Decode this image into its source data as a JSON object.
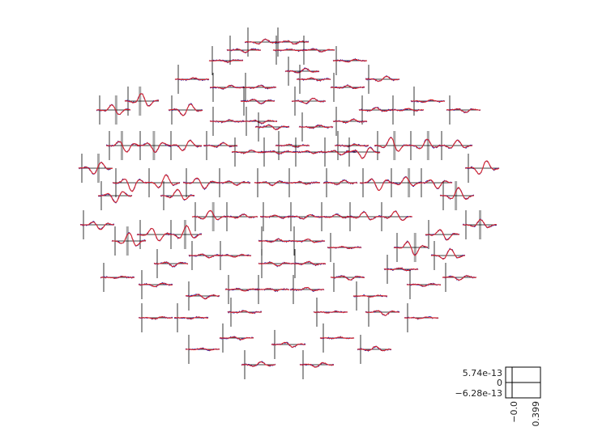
{
  "chart_data": {
    "type": "line",
    "title": "",
    "layout": "sensor topography, one small evoked-response axis per channel",
    "n_channels": 102,
    "time_range": [
      -0.05,
      0.399
    ],
    "amplitude_range": [
      -6.28e-13,
      5.74e-13
    ],
    "series": [
      {
        "color": "#d8232a"
      },
      {
        "color": "#2525a8"
      }
    ],
    "highlight_color": "#a9a9a9",
    "scale_axis": {
      "ytick_labels": [
        "5.74e-13",
        "0",
        "−6.28e-13"
      ],
      "xtick_labels": [
        "−0.0",
        "0.399"
      ]
    }
  }
}
